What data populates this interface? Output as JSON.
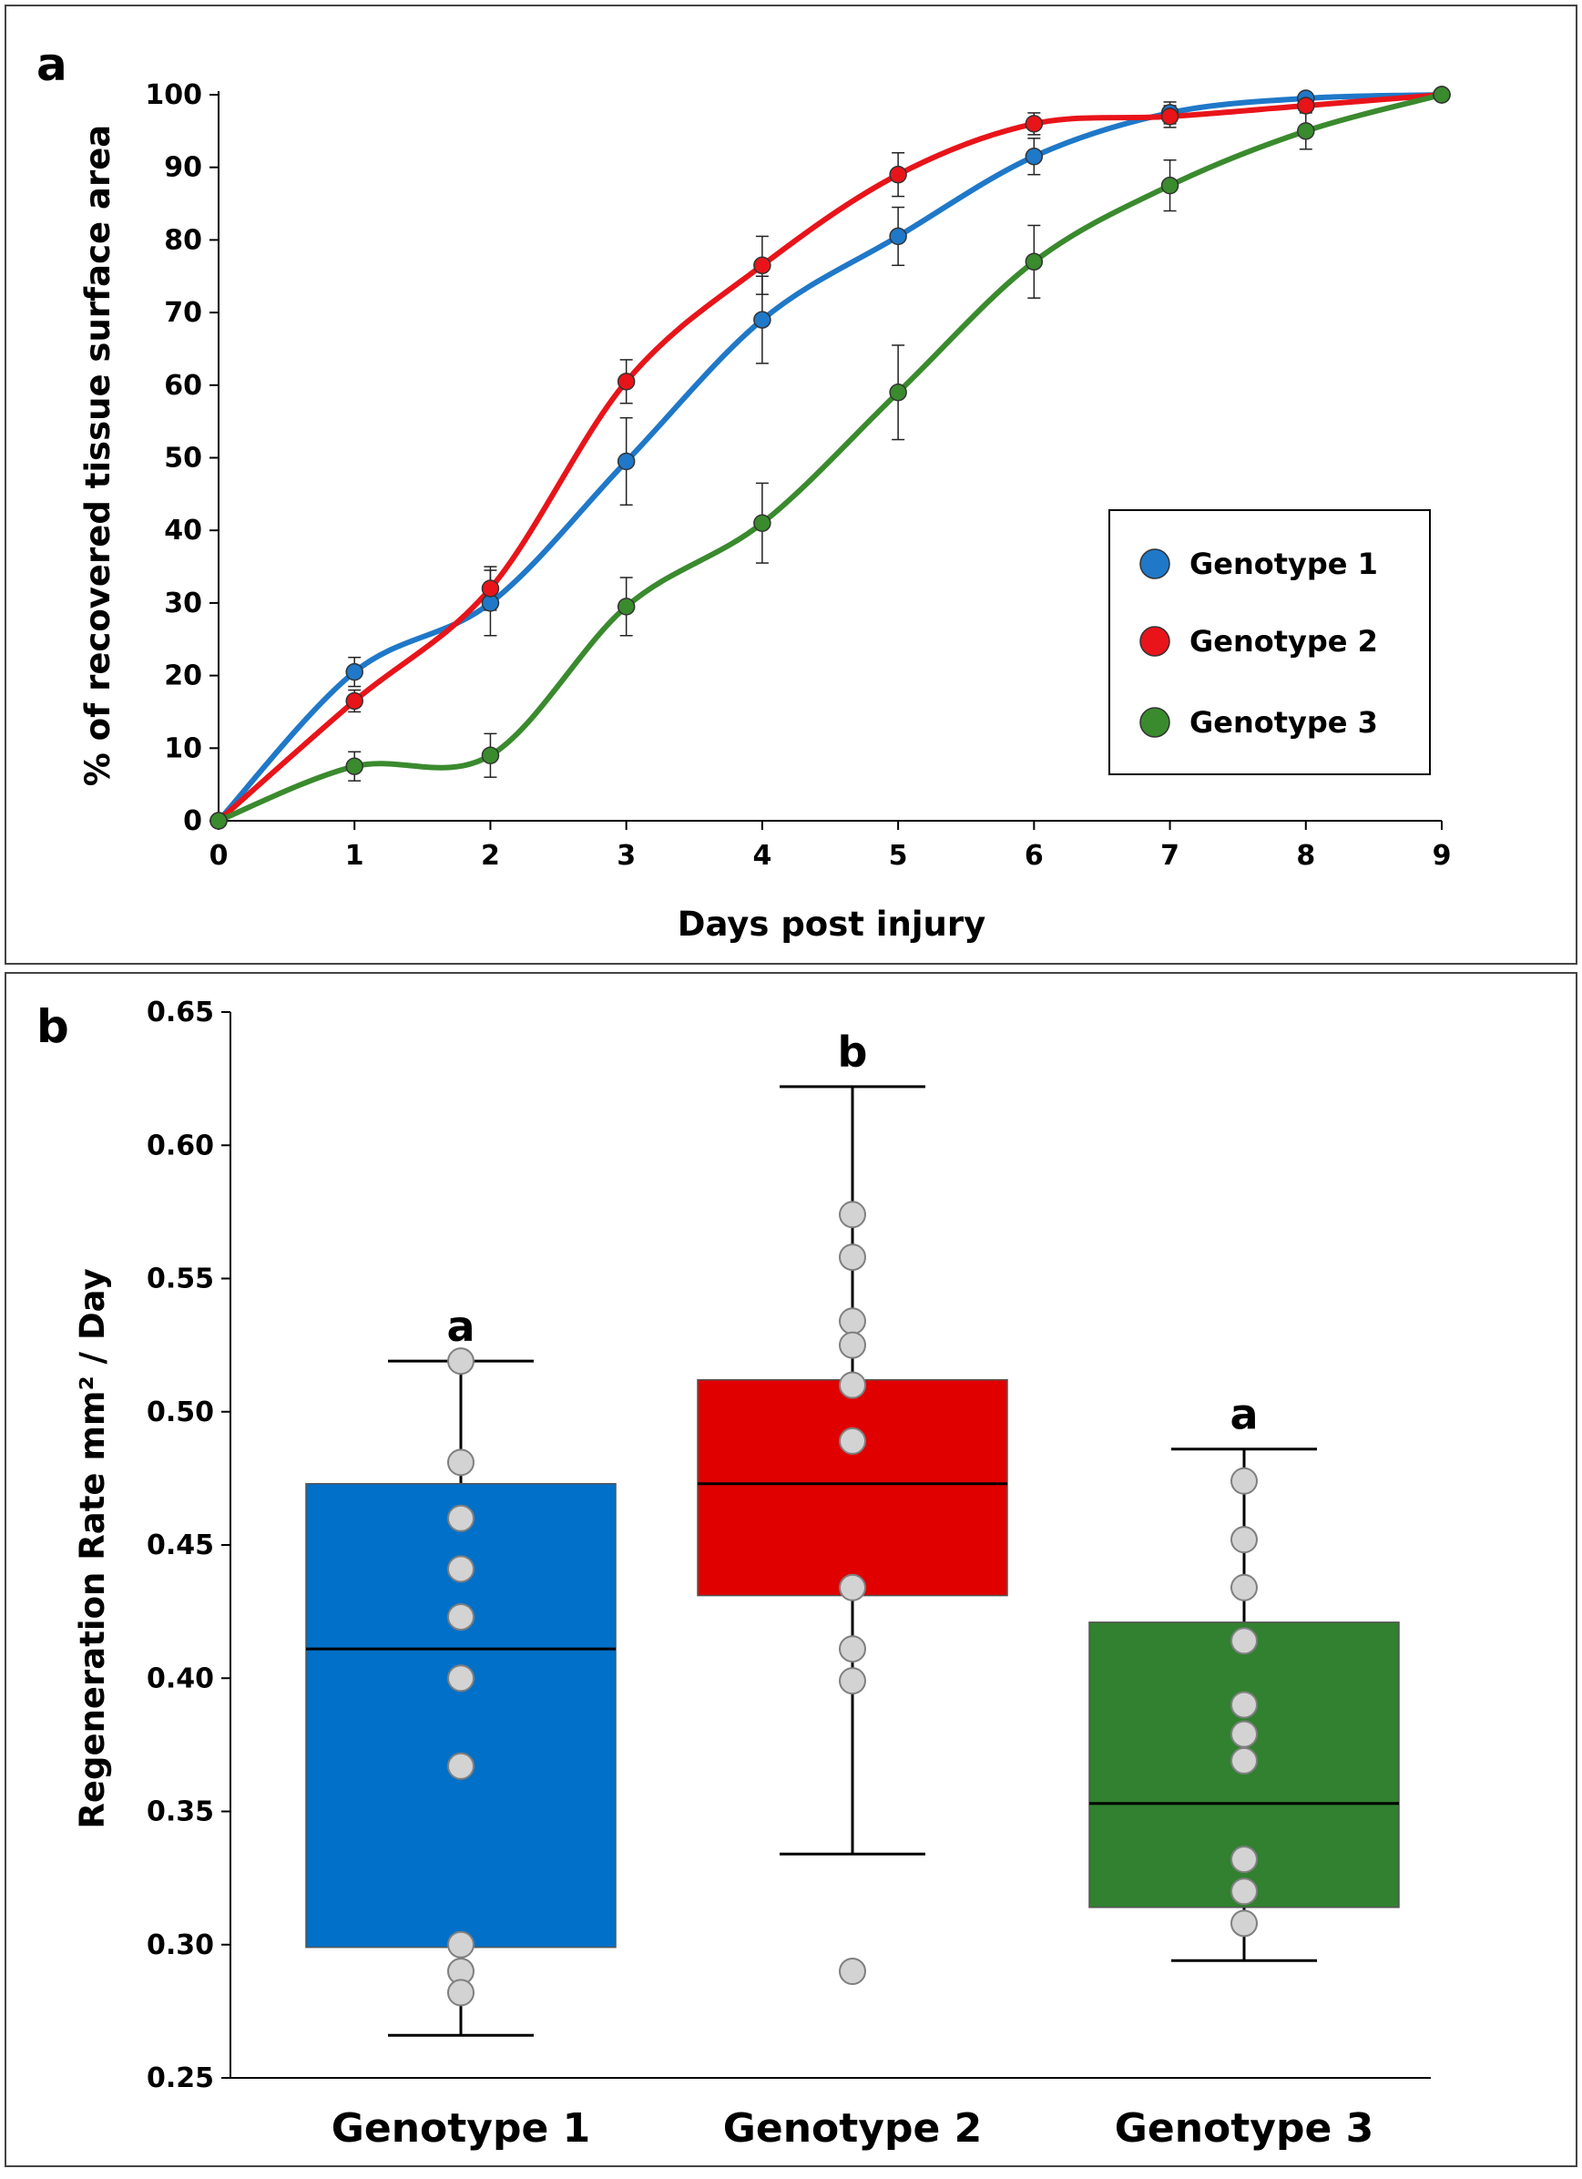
{
  "colors": {
    "genotype1": "#1f78c8",
    "genotype2": "#e8141a",
    "genotype3": "#3a8a2e",
    "box1": "#0070c8",
    "box2": "#e00000",
    "box3": "#318130",
    "point": "#d3d3d3"
  },
  "chart_data": [
    {
      "panel": "a",
      "type": "line",
      "xlabel": "Days post injury",
      "ylabel": "% of recovered tissue surface area",
      "x": [
        0,
        1,
        2,
        3,
        4,
        5,
        6,
        7,
        8,
        9
      ],
      "xlim": [
        0,
        9
      ],
      "ylim": [
        0,
        100
      ],
      "xticks": [
        "0",
        "1",
        "2",
        "3",
        "4",
        "5",
        "6",
        "7",
        "8",
        "9"
      ],
      "yticks": [
        "0",
        "10",
        "20",
        "30",
        "40",
        "50",
        "60",
        "70",
        "80",
        "90",
        "100"
      ],
      "legend_position": "right",
      "series": [
        {
          "name": "Genotype 1",
          "values": [
            0,
            20.5,
            30,
            49.5,
            69,
            80.5,
            91.5,
            97.5,
            99.5,
            100
          ],
          "errors": [
            0,
            2,
            4.5,
            6,
            6,
            4,
            2.5,
            1.5,
            0.5,
            0
          ]
        },
        {
          "name": "Genotype 2",
          "values": [
            0,
            16.5,
            32,
            60.5,
            76.5,
            89,
            96,
            97,
            98.5,
            100
          ],
          "errors": [
            0,
            1.5,
            3,
            3,
            4,
            3,
            1.5,
            1.5,
            0.5,
            0
          ]
        },
        {
          "name": "Genotype 3",
          "values": [
            0,
            7.5,
            9,
            29.5,
            41,
            59,
            77,
            87.5,
            95,
            100
          ],
          "errors": [
            0,
            2,
            3,
            4,
            5.5,
            6.5,
            5,
            3.5,
            2.5,
            0
          ]
        }
      ]
    },
    {
      "panel": "b",
      "type": "box",
      "ylabel": "Regeneration Rate mm² / Day",
      "ylim": [
        0.25,
        0.65
      ],
      "yticks": [
        "0.25",
        "0.30",
        "0.35",
        "0.40",
        "0.45",
        "0.50",
        "0.55",
        "0.60",
        "0.65"
      ],
      "categories": [
        "Genotype 1",
        "Genotype 2",
        "Genotype 3"
      ],
      "boxes": [
        {
          "name": "Genotype 1",
          "whisker_low": 0.266,
          "q1": 0.299,
          "median": 0.411,
          "q3": 0.473,
          "whisker_high": 0.519,
          "letter": "a",
          "points": [
            0.519,
            0.481,
            0.46,
            0.441,
            0.423,
            0.4,
            0.367,
            0.3,
            0.29,
            0.282
          ]
        },
        {
          "name": "Genotype 2",
          "whisker_low": 0.334,
          "q1": 0.431,
          "median": 0.473,
          "q3": 0.512,
          "whisker_high": 0.622,
          "letter": "b",
          "points": [
            0.574,
            0.558,
            0.534,
            0.525,
            0.51,
            0.489,
            0.434,
            0.411,
            0.399,
            0.29
          ]
        },
        {
          "name": "Genotype 3",
          "whisker_low": 0.294,
          "q1": 0.314,
          "median": 0.353,
          "q3": 0.421,
          "whisker_high": 0.486,
          "letter": "a",
          "points": [
            0.474,
            0.452,
            0.434,
            0.414,
            0.39,
            0.379,
            0.369,
            0.332,
            0.32,
            0.308
          ]
        }
      ]
    }
  ]
}
